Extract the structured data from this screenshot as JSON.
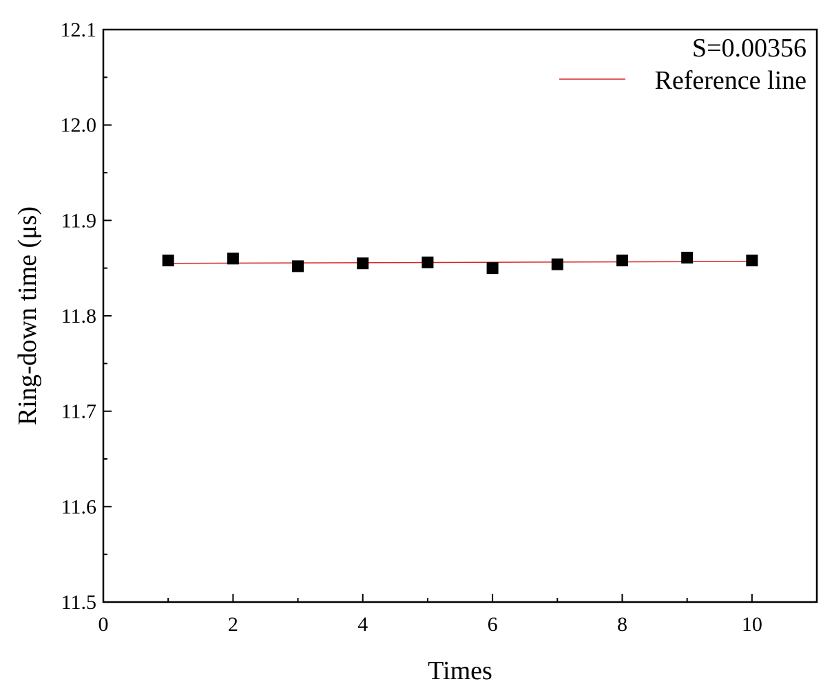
{
  "chart_data": {
    "type": "scatter",
    "title": "",
    "xlabel": "Times",
    "ylabel": "Ring-down time (μs)",
    "xlim": [
      0,
      11
    ],
    "ylim": [
      11.5,
      12.1
    ],
    "x_ticks": [
      "0",
      "2",
      "4",
      "6",
      "8",
      "10"
    ],
    "y_ticks": [
      "11.5",
      "11.6",
      "11.7",
      "11.8",
      "11.9",
      "12.0",
      "12.1"
    ],
    "grid": false,
    "legend_placement": "top-right",
    "annotation": "S=0.00356",
    "series": [
      {
        "type": "scatter",
        "marker": "square",
        "color": "#000000",
        "points": [
          {
            "x": 1,
            "y": 11.858
          },
          {
            "x": 2,
            "y": 11.86
          },
          {
            "x": 3,
            "y": 11.852
          },
          {
            "x": 4,
            "y": 11.855
          },
          {
            "x": 5,
            "y": 11.856
          },
          {
            "x": 6,
            "y": 11.85
          },
          {
            "x": 7,
            "y": 11.854
          },
          {
            "x": 8,
            "y": 11.858
          },
          {
            "x": 9,
            "y": 11.861
          },
          {
            "x": 10,
            "y": 11.858
          }
        ]
      },
      {
        "name": "Reference line",
        "type": "line",
        "color": "#d62728",
        "points": [
          {
            "x": 1,
            "y": 11.855
          },
          {
            "x": 10,
            "y": 11.857
          }
        ]
      }
    ]
  }
}
